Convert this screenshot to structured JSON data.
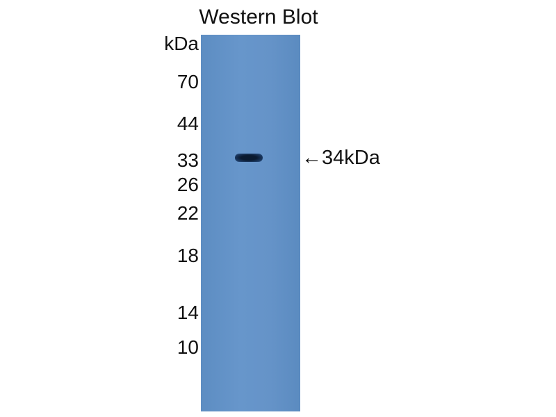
{
  "title": "Western Blot",
  "unit_label": "kDa",
  "markers": [
    "70",
    "44",
    "33",
    "26",
    "22",
    "18",
    "14",
    "10"
  ],
  "band_annotation": "←34kDa",
  "membrane_color": "#6593c8",
  "band_color": "#0a1a30"
}
